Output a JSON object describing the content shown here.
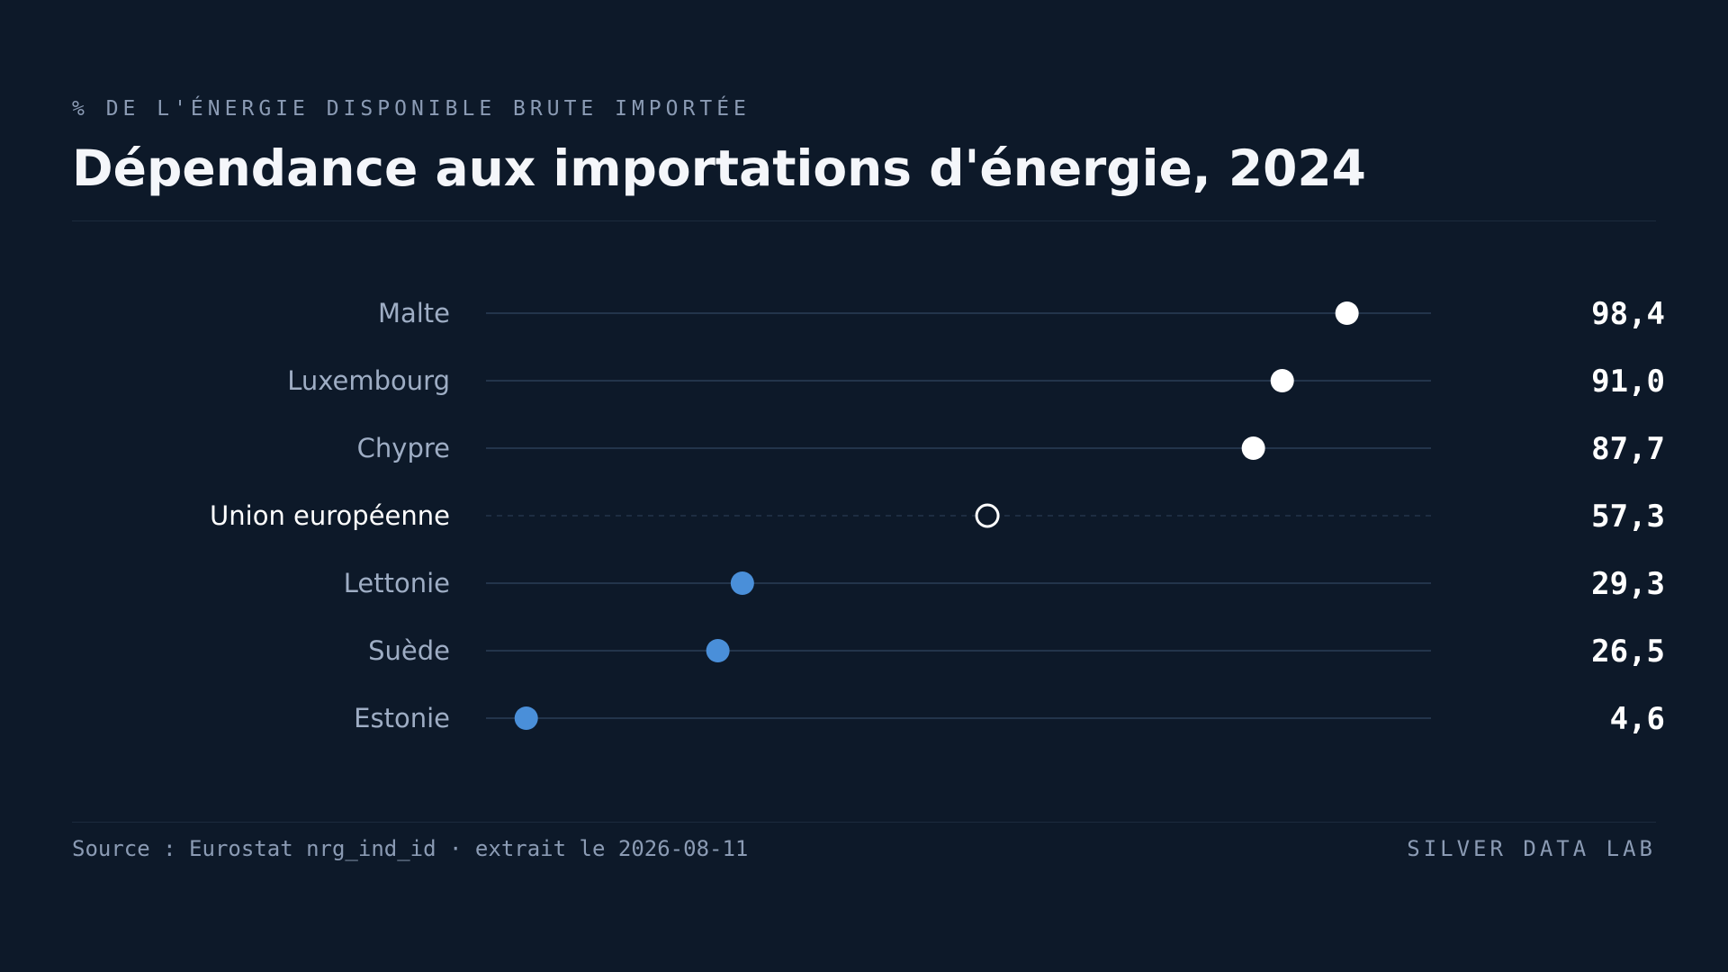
{
  "header": {
    "kicker": "% DE L'ÉNERGIE DISPONIBLE BRUTE IMPORTÉE",
    "title": "Dépendance aux importations d'énergie, 2024"
  },
  "footer": {
    "source": "Source : Eurostat nrg_ind_id · extrait le 2026-08-11",
    "brand": "SILVER DATA LAB"
  },
  "colors": {
    "background": "#0d1929",
    "high": "#ffffff",
    "low": "#4a8fd9",
    "track": "#23344b",
    "label": "#9eadc4",
    "label_highlight": "#ffffff",
    "value": "#ffffff"
  },
  "chart_data": {
    "type": "scatter",
    "subtype": "dot-plot",
    "title": "Dépendance aux importations d'énergie, 2024",
    "unit": "% de l'énergie disponible brute importée",
    "xlim": [
      0,
      108
    ],
    "grid": false,
    "legend": "none",
    "points": [
      {
        "category": "Malte",
        "value": 98.4,
        "label": "98,4",
        "group": "high"
      },
      {
        "category": "Luxembourg",
        "value": 91.0,
        "label": "91,0",
        "group": "high"
      },
      {
        "category": "Chypre",
        "value": 87.7,
        "label": "87,7",
        "group": "high"
      },
      {
        "category": "Union européenne",
        "value": 57.3,
        "label": "57,3",
        "group": "reference"
      },
      {
        "category": "Lettonie",
        "value": 29.3,
        "label": "29,3",
        "group": "low"
      },
      {
        "category": "Suède",
        "value": 26.5,
        "label": "26,5",
        "group": "low"
      },
      {
        "category": "Estonie",
        "value": 4.6,
        "label": "4,6",
        "group": "low"
      }
    ]
  }
}
